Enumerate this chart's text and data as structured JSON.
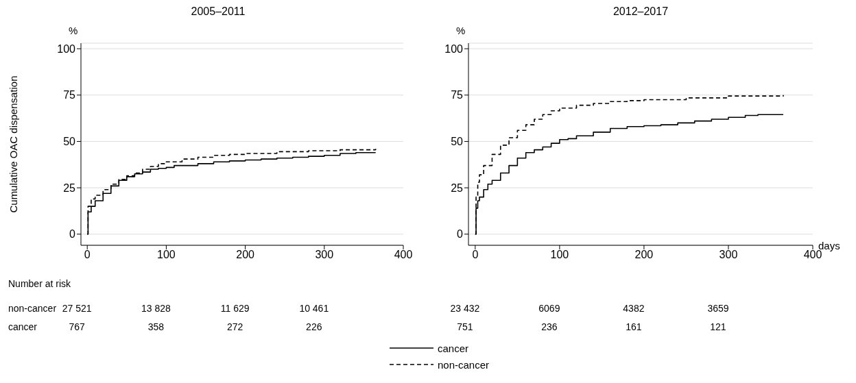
{
  "chart_data": [
    {
      "type": "step",
      "title": "2005–2011",
      "ylabel": "Cumulative OAC dispensation",
      "xlim": [
        -8,
        400
      ],
      "xticks": [
        0,
        100,
        200,
        300,
        400
      ],
      "ylim": [
        -6,
        103
      ],
      "yticks": [
        0,
        25,
        50,
        75,
        100
      ],
      "grid": "y",
      "annotations": [
        "%",
        "Number at risk",
        "non-cancer",
        "cancer",
        "27 521",
        "13 828",
        "11 629",
        "10 461",
        "767",
        "358",
        "272",
        "226"
      ],
      "series": [
        {
          "color": "#000000",
          "line_style": "solid",
          "x": [
            0,
            1,
            5,
            10,
            20,
            30,
            40,
            50,
            60,
            70,
            80,
            90,
            100,
            110,
            120,
            140,
            160,
            180,
            200,
            220,
            240,
            260,
            280,
            300,
            320,
            340,
            365
          ],
          "values": [
            0,
            12,
            15,
            18,
            22,
            26,
            29,
            31,
            32.5,
            33.5,
            35,
            35.5,
            36,
            37,
            37,
            38,
            39,
            39.5,
            40,
            40.5,
            41,
            41.5,
            42,
            42.5,
            43.5,
            44,
            44
          ]
        },
        {
          "color": "#000000",
          "line_style": "dashed",
          "x": [
            0,
            1,
            5,
            10,
            20,
            30,
            40,
            50,
            60,
            70,
            80,
            90,
            100,
            120,
            140,
            160,
            180,
            200,
            240,
            280,
            320,
            365
          ],
          "values": [
            0,
            15,
            19,
            21,
            24,
            27,
            29.5,
            31.5,
            33,
            35,
            36.5,
            38,
            39,
            40.5,
            41.5,
            42.5,
            43,
            43.5,
            44.5,
            45,
            45.5,
            46
          ]
        }
      ]
    },
    {
      "type": "step",
      "title": "2012–2017",
      "xlabel": "days",
      "xlim": [
        -8,
        400
      ],
      "xticks": [
        0,
        100,
        200,
        300,
        400
      ],
      "ylim": [
        -6,
        103
      ],
      "yticks": [
        0,
        25,
        50,
        75,
        100
      ],
      "grid": "y",
      "legend": "bottom",
      "annotations": [
        "%",
        "23 432",
        "6069",
        "4382",
        "3659",
        "751",
        "236",
        "161",
        "121"
      ],
      "series": [
        {
          "name": "cancer",
          "color": "#000000",
          "line_style": "solid",
          "x": [
            0,
            1,
            3,
            5,
            10,
            15,
            20,
            30,
            40,
            50,
            60,
            70,
            80,
            90,
            100,
            110,
            120,
            140,
            160,
            180,
            200,
            220,
            240,
            260,
            280,
            300,
            320,
            335,
            365
          ],
          "values": [
            0,
            14,
            18,
            20,
            24,
            27,
            29,
            33,
            37,
            41,
            44,
            45.5,
            47,
            49,
            51,
            51.5,
            53,
            55,
            57,
            58,
            58.5,
            59,
            60,
            61,
            62,
            63,
            64,
            64.5,
            64.5
          ]
        },
        {
          "name": "non-cancer",
          "color": "#000000",
          "line_style": "dashed",
          "x": [
            0,
            1,
            3,
            5,
            10,
            20,
            30,
            40,
            50,
            60,
            70,
            80,
            90,
            100,
            120,
            140,
            160,
            180,
            200,
            250,
            300,
            365
          ],
          "values": [
            0,
            20,
            28,
            32,
            37,
            43,
            48,
            52,
            56,
            59,
            62,
            64.5,
            66.5,
            68,
            69.5,
            70.5,
            71.5,
            72,
            72.5,
            73.5,
            74.5,
            75
          ]
        }
      ]
    }
  ]
}
